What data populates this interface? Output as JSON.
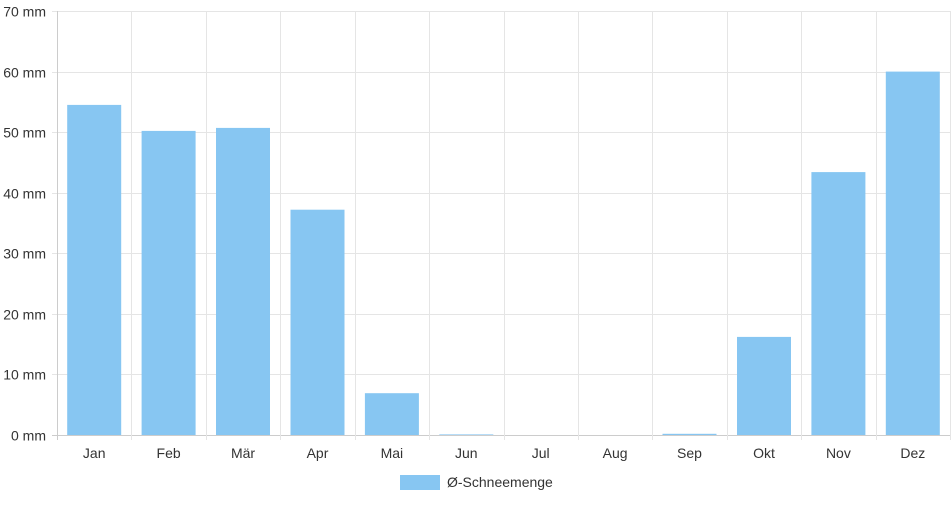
{
  "chart_data": {
    "type": "bar",
    "categories": [
      "Jan",
      "Feb",
      "Mär",
      "Apr",
      "Mai",
      "Jun",
      "Jul",
      "Aug",
      "Sep",
      "Okt",
      "Nov",
      "Dez"
    ],
    "series": [
      {
        "name": "Ø-Schneemenge",
        "values": [
          54.5,
          50.2,
          50.7,
          37.2,
          6.9,
          0.1,
          0,
          0,
          0.2,
          16.2,
          43.4,
          60.0
        ],
        "color": "#87c6f2"
      }
    ],
    "y_unit": "mm",
    "ylim": [
      0,
      70
    ],
    "y_ticks": [
      0,
      10,
      20,
      30,
      40,
      50,
      60,
      70
    ],
    "y_tick_labels": [
      "0 mm",
      "10 mm",
      "20 mm",
      "30 mm",
      "40 mm",
      "50 mm",
      "60 mm",
      "70 mm"
    ],
    "grid": true,
    "legend_position": "bottom-center",
    "colors": {
      "grid": "#e5e5e5",
      "axis": "#cccccc",
      "text": "#333333"
    }
  }
}
